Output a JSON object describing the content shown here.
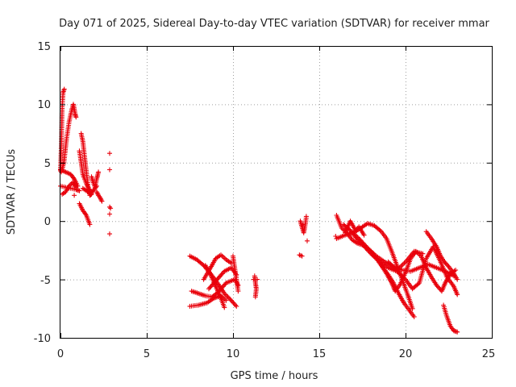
{
  "chart_data": {
    "type": "scatter",
    "title": "Day 071 of 2025, Sidereal Day-to-day VTEC variation (SDTVAR) for receiver mmar",
    "xlabel": "GPS time / hours",
    "ylabel": "SDTVAR / TECUs",
    "xlim": [
      0,
      25
    ],
    "ylim": [
      -10,
      15
    ],
    "xticks": [
      0,
      5,
      10,
      15,
      20,
      25
    ],
    "yticks": [
      -10,
      -5,
      0,
      5,
      10,
      15
    ],
    "xtick_labels": [
      "0",
      "5",
      "10",
      "15",
      "20",
      "25"
    ],
    "ytick_labels": [
      "-10",
      "-5",
      "0",
      "5",
      "10",
      "15"
    ],
    "grid": true,
    "marker": "+",
    "color": "#e8000b",
    "tracks": [
      [
        [
          0.0,
          4.3
        ],
        [
          0.05,
          6.5
        ],
        [
          0.1,
          9.8
        ],
        [
          0.15,
          11.0
        ],
        [
          0.22,
          11.3
        ]
      ],
      [
        [
          0.05,
          4.2
        ],
        [
          0.2,
          5.0
        ],
        [
          0.35,
          7.0
        ],
        [
          0.5,
          8.5
        ],
        [
          0.65,
          9.5
        ],
        [
          0.75,
          10.0
        ],
        [
          0.85,
          9.2
        ],
        [
          0.9,
          8.9
        ]
      ],
      [
        [
          0.0,
          4.4
        ],
        [
          0.3,
          4.2
        ],
        [
          0.6,
          4.0
        ],
        [
          0.8,
          3.6
        ],
        [
          1.0,
          3.0
        ]
      ],
      [
        [
          0.0,
          3.0
        ],
        [
          0.3,
          2.9
        ],
        [
          0.6,
          2.8
        ],
        [
          0.9,
          2.7
        ],
        [
          1.1,
          2.6
        ]
      ],
      [
        [
          0.1,
          2.3
        ],
        [
          0.3,
          2.5
        ],
        [
          0.5,
          3.0
        ],
        [
          0.7,
          3.3
        ],
        [
          0.9,
          2.9
        ]
      ],
      [
        [
          1.1,
          6.0
        ],
        [
          1.2,
          5.0
        ],
        [
          1.3,
          4.0
        ],
        [
          1.5,
          3.2
        ],
        [
          1.7,
          2.6
        ],
        [
          1.9,
          2.5
        ]
      ],
      [
        [
          1.2,
          7.5
        ],
        [
          1.3,
          6.8
        ],
        [
          1.4,
          5.5
        ],
        [
          1.5,
          4.2
        ],
        [
          1.6,
          3.0
        ],
        [
          1.7,
          2.2
        ],
        [
          1.8,
          2.3
        ]
      ],
      [
        [
          1.1,
          1.5
        ],
        [
          1.3,
          0.9
        ],
        [
          1.5,
          0.5
        ],
        [
          1.7,
          -0.3
        ]
      ],
      [
        [
          1.3,
          2.8
        ],
        [
          1.5,
          2.6
        ],
        [
          1.7,
          2.4
        ],
        [
          1.9,
          2.6
        ],
        [
          2.1,
          3.0
        ]
      ],
      [
        [
          1.8,
          3.8
        ],
        [
          1.9,
          3.3
        ],
        [
          2.0,
          2.9
        ],
        [
          2.1,
          3.6
        ],
        [
          2.2,
          4.2
        ]
      ],
      [
        [
          2.1,
          2.5
        ],
        [
          2.2,
          2.2
        ],
        [
          2.3,
          2.0
        ],
        [
          2.4,
          1.7
        ]
      ],
      [
        [
          7.5,
          -3.0
        ],
        [
          7.9,
          -3.3
        ],
        [
          8.3,
          -3.8
        ],
        [
          8.7,
          -4.5
        ],
        [
          9.1,
          -5.3
        ],
        [
          9.5,
          -6.2
        ],
        [
          9.9,
          -6.8
        ],
        [
          10.2,
          -7.3
        ]
      ],
      [
        [
          7.6,
          -6.0
        ],
        [
          8.0,
          -6.2
        ],
        [
          8.4,
          -6.4
        ],
        [
          8.8,
          -6.5
        ],
        [
          9.2,
          -6.0
        ],
        [
          9.6,
          -5.3
        ],
        [
          10.1,
          -5.0
        ],
        [
          10.3,
          -5.5
        ]
      ],
      [
        [
          7.5,
          -7.3
        ],
        [
          8.0,
          -7.2
        ],
        [
          8.5,
          -7.0
        ],
        [
          8.9,
          -6.6
        ],
        [
          9.3,
          -6.4
        ],
        [
          9.6,
          -6.8
        ]
      ],
      [
        [
          8.4,
          -3.8
        ],
        [
          8.7,
          -4.6
        ],
        [
          9.0,
          -5.6
        ],
        [
          9.3,
          -6.6
        ],
        [
          9.5,
          -7.4
        ]
      ],
      [
        [
          8.6,
          -5.8
        ],
        [
          8.9,
          -5.3
        ],
        [
          9.2,
          -4.8
        ],
        [
          9.5,
          -4.3
        ],
        [
          9.9,
          -4.0
        ],
        [
          10.2,
          -4.6
        ]
      ],
      [
        [
          8.3,
          -5.0
        ],
        [
          8.7,
          -4.0
        ],
        [
          9.0,
          -3.2
        ],
        [
          9.3,
          -2.9
        ],
        [
          9.6,
          -3.3
        ],
        [
          9.9,
          -3.6
        ]
      ],
      [
        [
          10.0,
          -3.0
        ],
        [
          10.1,
          -4.0
        ],
        [
          10.2,
          -5.0
        ],
        [
          10.3,
          -6.0
        ]
      ],
      [
        [
          11.25,
          -4.7
        ],
        [
          11.3,
          -5.3
        ],
        [
          11.35,
          -5.8
        ],
        [
          11.3,
          -6.5
        ]
      ],
      [
        [
          11.2,
          -5.0
        ],
        [
          11.4,
          -5.0
        ]
      ],
      [
        [
          13.85,
          -2.9
        ],
        [
          14.0,
          -3.0
        ]
      ],
      [
        [
          13.9,
          0.0
        ],
        [
          14.0,
          -0.5
        ],
        [
          14.1,
          -1.0
        ],
        [
          14.2,
          -0.2
        ],
        [
          14.25,
          0.4
        ]
      ],
      [
        [
          16.0,
          0.5
        ],
        [
          16.3,
          -0.6
        ],
        [
          16.6,
          -1.0
        ],
        [
          16.9,
          -1.6
        ],
        [
          17.2,
          -1.9
        ],
        [
          17.6,
          -2.1
        ],
        [
          18.0,
          -2.6
        ],
        [
          18.4,
          -3.4
        ],
        [
          18.7,
          -4.0
        ],
        [
          19.0,
          -4.6
        ],
        [
          19.3,
          -5.3
        ],
        [
          19.6,
          -6.2
        ],
        [
          19.9,
          -7.0
        ],
        [
          20.2,
          -7.6
        ],
        [
          20.5,
          -8.2
        ]
      ],
      [
        [
          16.0,
          -1.5
        ],
        [
          16.5,
          -1.2
        ],
        [
          17.0,
          -1.0
        ],
        [
          17.5,
          -0.5
        ],
        [
          17.8,
          -0.2
        ],
        [
          18.2,
          -0.4
        ],
        [
          18.6,
          -0.9
        ],
        [
          18.9,
          -1.5
        ],
        [
          19.2,
          -2.6
        ],
        [
          19.5,
          -3.8
        ],
        [
          19.8,
          -5.0
        ],
        [
          20.1,
          -6.2
        ],
        [
          20.4,
          -7.5
        ]
      ],
      [
        [
          16.4,
          -0.3
        ],
        [
          16.8,
          -0.8
        ],
        [
          17.3,
          -1.5
        ],
        [
          17.8,
          -2.3
        ],
        [
          18.3,
          -3.0
        ],
        [
          18.8,
          -3.5
        ],
        [
          19.3,
          -3.9
        ],
        [
          19.8,
          -4.2
        ],
        [
          20.3,
          -4.3
        ],
        [
          20.8,
          -4.0
        ],
        [
          21.3,
          -3.7
        ],
        [
          21.8,
          -4.0
        ],
        [
          22.3,
          -4.3
        ],
        [
          22.8,
          -4.7
        ]
      ],
      [
        [
          17.0,
          -1.2
        ],
        [
          17.5,
          -2.0
        ],
        [
          18.0,
          -2.8
        ],
        [
          18.5,
          -3.5
        ],
        [
          19.0,
          -4.0
        ],
        [
          19.5,
          -4.3
        ],
        [
          20.0,
          -5.0
        ],
        [
          20.4,
          -5.8
        ],
        [
          20.8,
          -5.3
        ],
        [
          21.2,
          -3.2
        ],
        [
          21.6,
          -2.2
        ],
        [
          22.0,
          -3.4
        ],
        [
          22.4,
          -4.8
        ],
        [
          22.8,
          -5.6
        ],
        [
          23.0,
          -6.3
        ]
      ],
      [
        [
          18.6,
          -3.8
        ],
        [
          18.9,
          -4.5
        ],
        [
          19.2,
          -5.3
        ],
        [
          19.4,
          -6.0
        ],
        [
          19.7,
          -5.4
        ],
        [
          20.0,
          -4.4
        ],
        [
          20.3,
          -3.2
        ],
        [
          20.6,
          -2.6
        ],
        [
          20.9,
          -3.0
        ],
        [
          21.2,
          -4.0
        ],
        [
          21.5,
          -4.8
        ],
        [
          21.8,
          -5.5
        ],
        [
          22.1,
          -6.0
        ],
        [
          22.3,
          -5.3
        ],
        [
          22.6,
          -4.5
        ],
        [
          22.9,
          -4.2
        ]
      ],
      [
        [
          19.0,
          -3.5
        ],
        [
          19.5,
          -4.2
        ],
        [
          20.0,
          -3.5
        ],
        [
          20.5,
          -2.6
        ],
        [
          21.0,
          -2.8
        ]
      ],
      [
        [
          21.2,
          -0.9
        ],
        [
          21.5,
          -1.5
        ],
        [
          21.8,
          -2.2
        ],
        [
          22.0,
          -2.9
        ],
        [
          22.2,
          -3.4
        ],
        [
          22.5,
          -3.9
        ],
        [
          22.8,
          -4.5
        ],
        [
          23.0,
          -5.0
        ]
      ],
      [
        [
          22.2,
          -7.2
        ],
        [
          22.4,
          -8.2
        ],
        [
          22.6,
          -9.0
        ],
        [
          22.8,
          -9.4
        ],
        [
          23.0,
          -9.5
        ]
      ],
      [
        [
          16.5,
          -1.0
        ],
        [
          16.8,
          0.0
        ],
        [
          17.1,
          -0.8
        ],
        [
          17.3,
          -0.5
        ],
        [
          17.6,
          -1.2
        ]
      ]
    ],
    "isolated_points": [
      [
        2.85,
        5.8
      ],
      [
        2.85,
        4.4
      ],
      [
        2.85,
        1.2
      ],
      [
        2.85,
        0.6
      ],
      [
        2.85,
        -1.1
      ],
      [
        2.9,
        1.1
      ],
      [
        14.3,
        -1.7
      ],
      [
        14.05,
        -0.3
      ],
      [
        0.8,
        2.2
      ],
      [
        15.95,
        -1.3
      ]
    ]
  }
}
